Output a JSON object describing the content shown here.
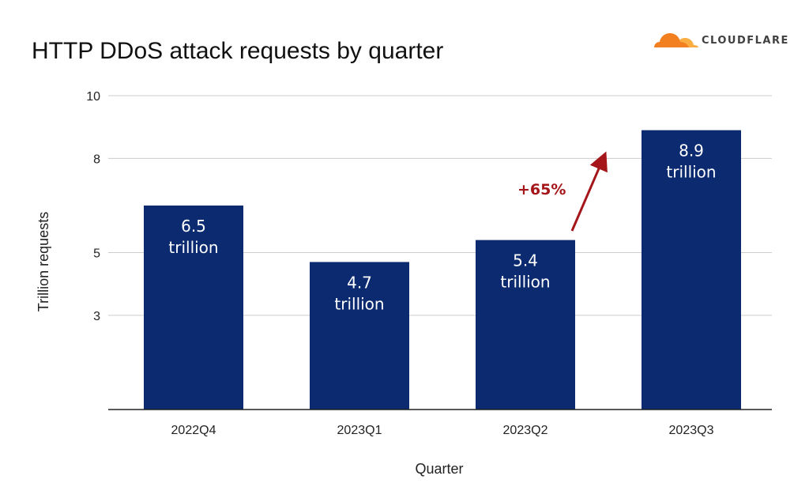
{
  "brand": {
    "name": "CLOUDFLARE",
    "color": "#F38020",
    "color_light": "#FBAD41"
  },
  "colors": {
    "bar": "#0B2A6F",
    "grid": "#cccccc",
    "axis": "#222222",
    "annotation": "#A4161A"
  },
  "chart_data": {
    "type": "bar",
    "title": "HTTP DDoS attack requests by quarter",
    "xlabel": "Quarter",
    "ylabel": "Trillion requests",
    "categories": [
      "2022Q4",
      "2023Q1",
      "2023Q2",
      "2023Q3"
    ],
    "values": [
      6.5,
      4.7,
      5.4,
      8.9
    ],
    "value_labels": [
      {
        "value": "6.5",
        "unit": "trillion"
      },
      {
        "value": "4.7",
        "unit": "trillion"
      },
      {
        "value": "5.4",
        "unit": "trillion"
      },
      {
        "value": "8.9",
        "unit": "trillion"
      }
    ],
    "yticks": [
      3,
      5,
      8,
      10
    ],
    "ytick_labels": [
      "3",
      "5",
      "8",
      "10"
    ],
    "ylim": [
      0,
      10
    ],
    "grid": true,
    "annotation": {
      "text": "+65%",
      "from": "2023Q2",
      "to": "2023Q3"
    }
  }
}
